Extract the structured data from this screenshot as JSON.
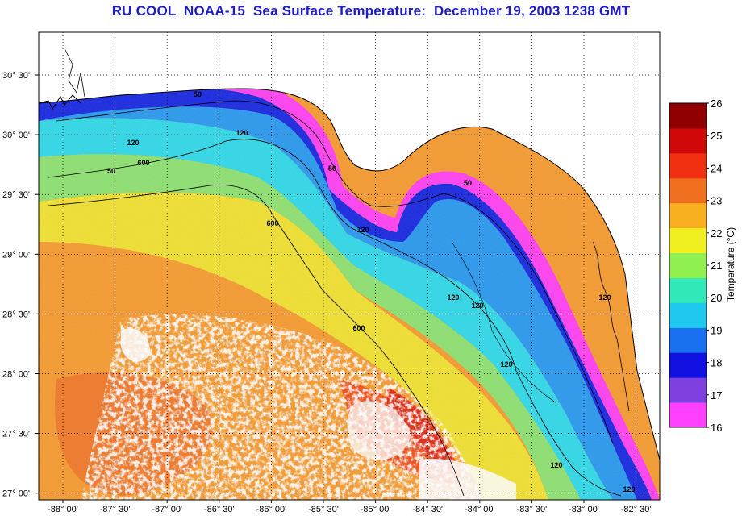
{
  "title": "RU COOL  NOAA-15  Sea Surface Temperature:  December 19, 2003 1238 GMT",
  "colorbar": {
    "title": "Temperature (°C)",
    "min": 16,
    "max": 26,
    "labels": [
      "26",
      "25",
      "24",
      "23",
      "22",
      "21",
      "20",
      "19",
      "18",
      "17",
      "16"
    ],
    "colors": [
      "#ff40ff",
      "#8040e0",
      "#1010e0",
      "#1870f0",
      "#20c8f0",
      "#30e8b8",
      "#90f050",
      "#f0f020",
      "#f8b020",
      "#f07020",
      "#f03010",
      "#d00808",
      "#900000"
    ]
  },
  "map": {
    "lon_labels": [
      "-88° 00'",
      "-87° 30'",
      "-87° 00'",
      "-86° 30'",
      "-86° 00'",
      "-85° 30'",
      "-85° 00'",
      "-84° 30'",
      "-84° 00'",
      "-83° 30'",
      "-83° 00'",
      "-82° 30'"
    ],
    "lat_labels": [
      "30° 30'",
      "30° 00'",
      "29° 30'",
      "29° 00'",
      "28° 30'",
      "28° 00'",
      "27° 30'",
      "27° 00'"
    ],
    "contour_labels": [
      "50",
      "120",
      "600",
      "50",
      "120",
      "600",
      "50",
      "120",
      "120",
      "120",
      "120",
      "50",
      "120",
      "600",
      "120",
      "120"
    ]
  }
}
